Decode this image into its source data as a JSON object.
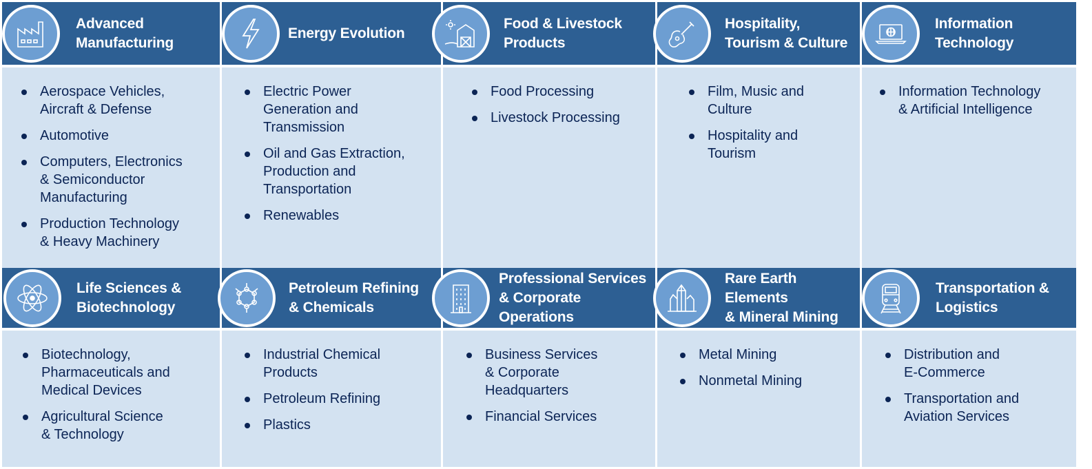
{
  "sectors": [
    {
      "title": "Advanced\nManufacturing",
      "icon": "factory-icon",
      "items": [
        "Aerospace Vehicles,\nAircraft & Defense",
        "Automotive",
        "Computers, Electronics\n& Semiconductor\nManufacturing",
        "Production Technology\n& Heavy Machinery"
      ]
    },
    {
      "title": "Energy Evolution",
      "icon": "lightning-bolt-icon",
      "items": [
        "Electric Power\nGeneration and\nTransmission",
        "Oil and Gas Extraction,\nProduction and\nTransportation",
        "Renewables"
      ]
    },
    {
      "title": "Food & Livestock\nProducts",
      "icon": "barn-icon",
      "items": [
        "Food Processing",
        "Livestock Processing"
      ]
    },
    {
      "title": "Hospitality,\nTourism & Culture",
      "icon": "guitar-icon",
      "items": [
        "Film, Music and\nCulture",
        "Hospitality and\nTourism"
      ]
    },
    {
      "title": "Information\nTechnology",
      "icon": "laptop-globe-icon",
      "items": [
        "Information Technology\n& Artificial Intelligence"
      ]
    },
    {
      "title": "Life Sciences &\nBiotechnology",
      "icon": "atom-icon",
      "items": [
        "Biotechnology,\nPharmaceuticals and\nMedical Devices",
        "Agricultural Science\n& Technology"
      ]
    },
    {
      "title": "Petroleum Refining\n& Chemicals",
      "icon": "molecule-icon",
      "items": [
        "Industrial Chemical\nProducts",
        "Petroleum Refining",
        "Plastics"
      ]
    },
    {
      "title": "Professional Services\n& Corporate Operations",
      "icon": "office-building-icon",
      "items": [
        "Business Services\n& Corporate\nHeadquarters",
        "Financial Services"
      ]
    },
    {
      "title": "Rare Earth Elements\n& Mineral Mining",
      "icon": "crystals-icon",
      "items": [
        "Metal Mining",
        "Nonmetal Mining"
      ]
    },
    {
      "title": "Transportation &\nLogistics",
      "icon": "train-icon",
      "items": [
        "Distribution and\nE-Commerce",
        "Transportation and\nAviation Services"
      ]
    }
  ],
  "colors": {
    "header": "#2d5f93",
    "icon_fill": "#6d9ed2",
    "body": "#d3e2f1",
    "text": "#0b2455"
  }
}
